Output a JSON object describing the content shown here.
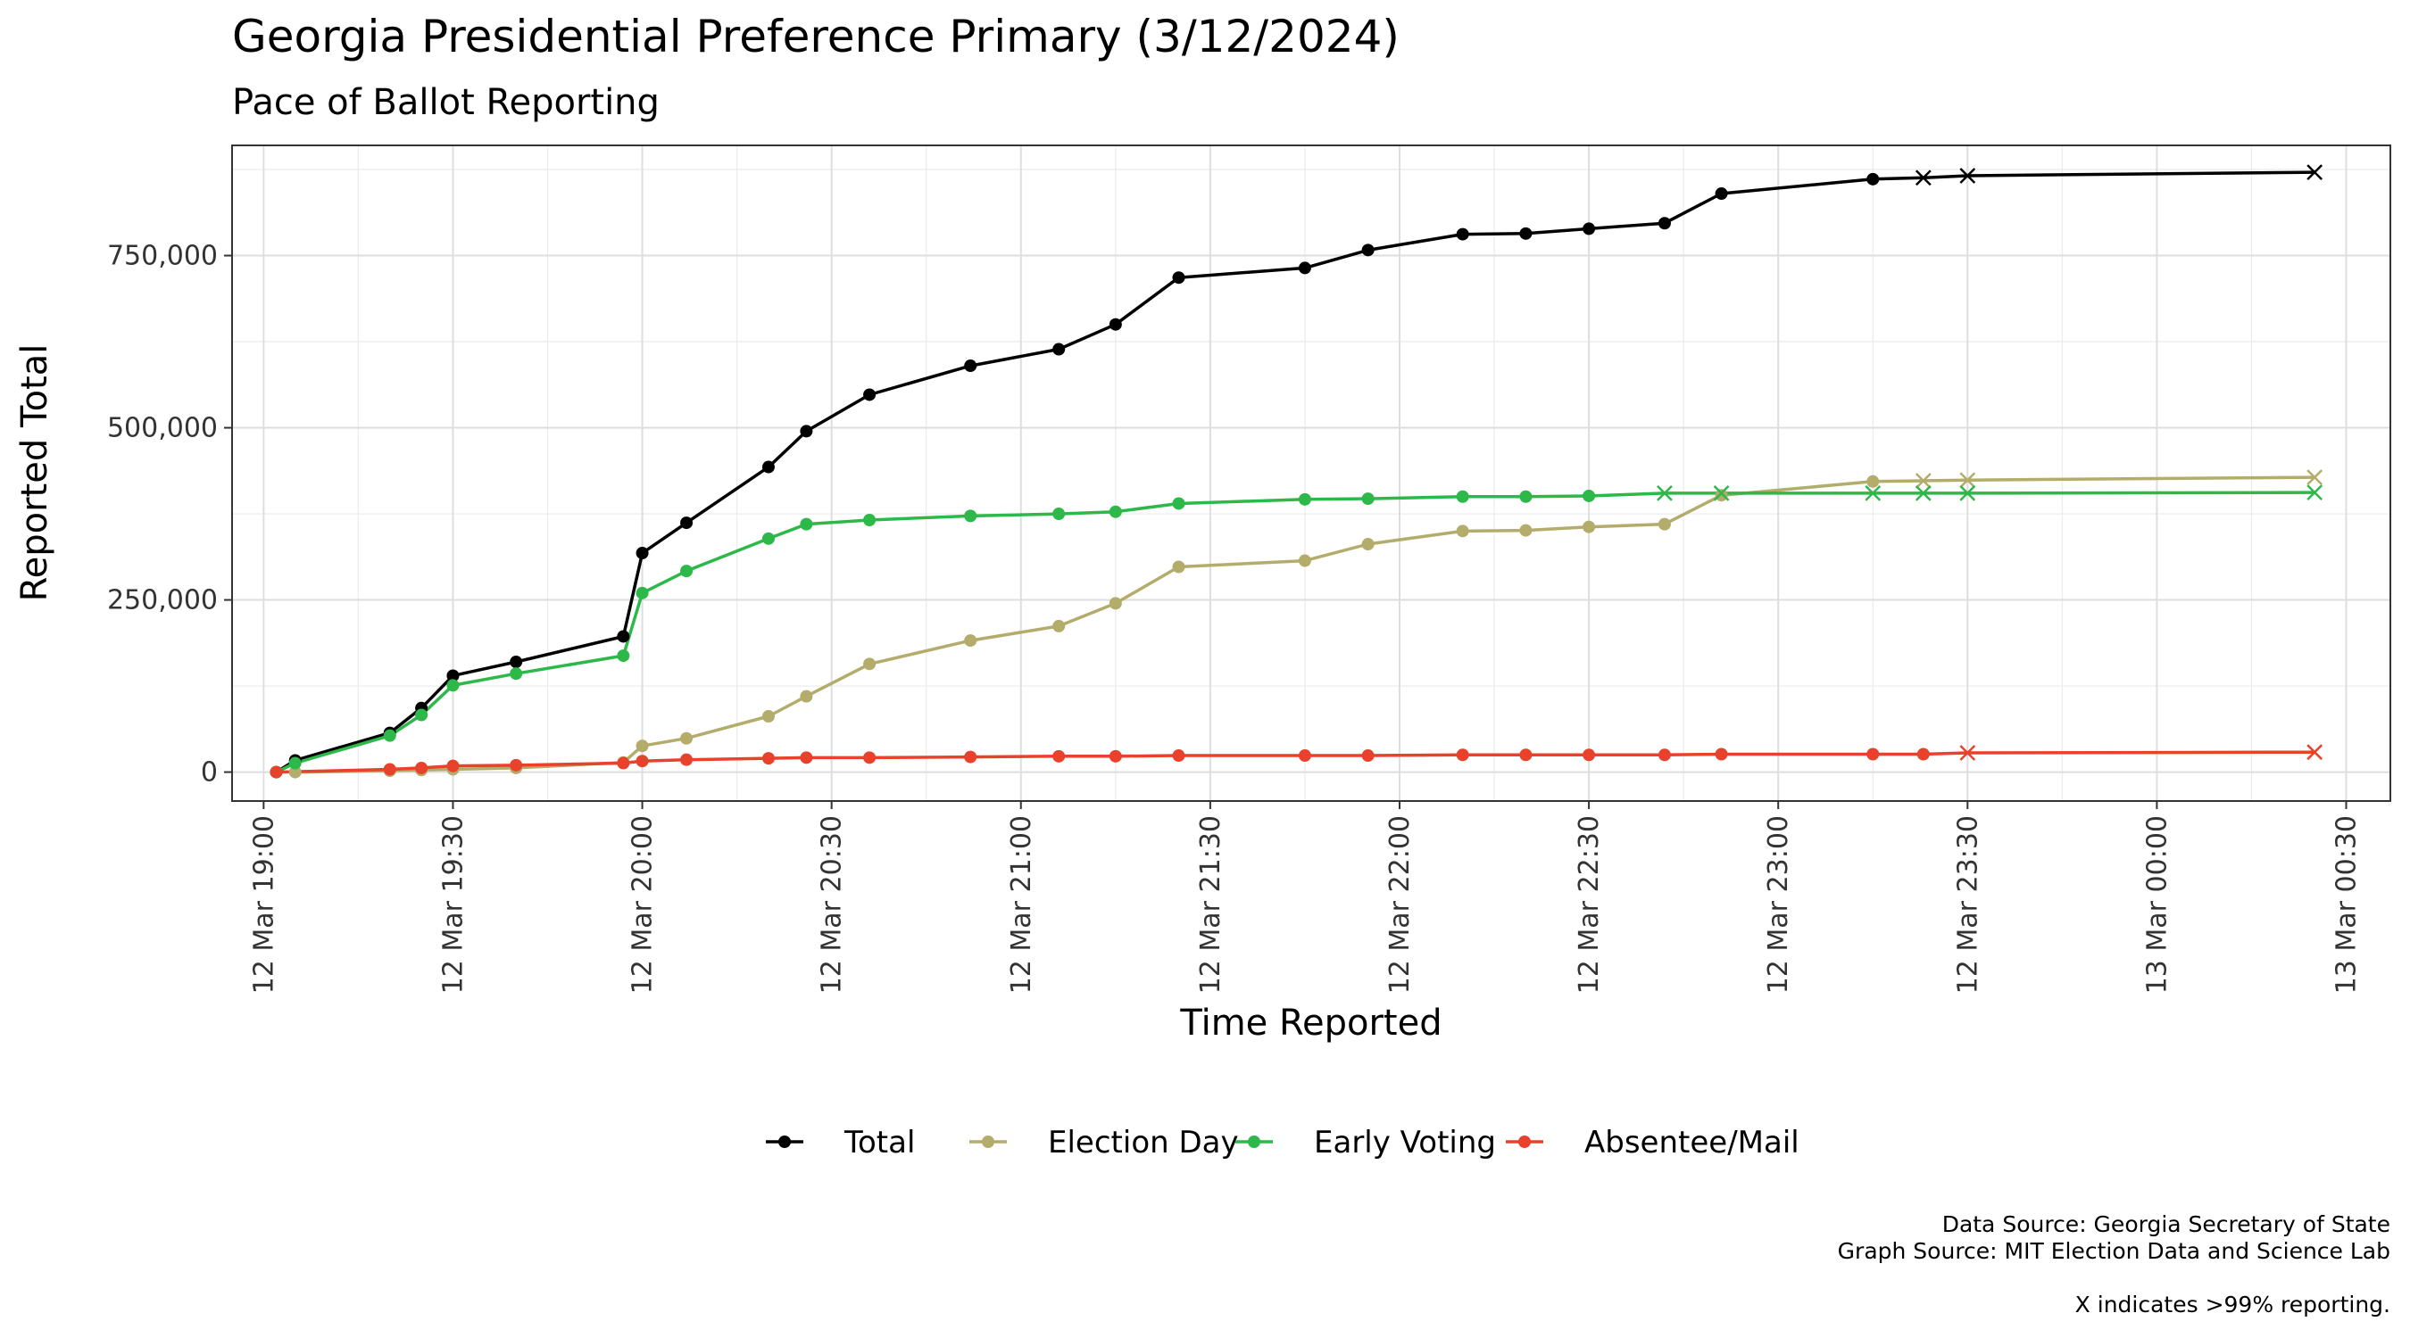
{
  "chart_data": {
    "type": "line",
    "title": "Georgia Presidential Preference Primary (3/12/2024)",
    "subtitle": "Pace of Ballot Reporting",
    "xlabel": "Time Reported",
    "ylabel": "Reported Total",
    "ylim": [
      -42000,
      910000
    ],
    "xlim": [
      "2024-03-12 18:55",
      "2024-03-13 00:37"
    ],
    "y_ticks": [
      0,
      250000,
      500000,
      750000
    ],
    "y_tick_labels": [
      "0",
      "250,000",
      "500,000",
      "750,000"
    ],
    "x_ticks": [
      "2024-03-12 19:00",
      "2024-03-12 19:30",
      "2024-03-12 20:00",
      "2024-03-12 20:30",
      "2024-03-12 21:00",
      "2024-03-12 21:30",
      "2024-03-12 22:00",
      "2024-03-12 22:30",
      "2024-03-12 23:00",
      "2024-03-12 23:30",
      "2024-03-13 00:00",
      "2024-03-13 00:30"
    ],
    "x_tick_labels": [
      "12 Mar 19:00",
      "12 Mar 19:30",
      "12 Mar 20:00",
      "12 Mar 20:30",
      "12 Mar 21:00",
      "12 Mar 21:30",
      "12 Mar 22:00",
      "12 Mar 22:30",
      "12 Mar 23:00",
      "12 Mar 23:30",
      "13 Mar 00:00",
      "13 Mar 00:30"
    ],
    "grid": true,
    "legend_position": "bottom",
    "marker_note": "X indicates >99% reporting.",
    "sources": [
      "Data Source: Georgia Secretary of State",
      "Graph Source: MIT Election Data and Science Lab"
    ],
    "series": [
      {
        "name": "Total",
        "color": "#000000",
        "points": [
          {
            "x": "2024-03-12 19:02",
            "y": 0,
            "m": "o"
          },
          {
            "x": "2024-03-12 19:05",
            "y": 17000,
            "m": "o"
          },
          {
            "x": "2024-03-12 19:20",
            "y": 57000,
            "m": "o"
          },
          {
            "x": "2024-03-12 19:25",
            "y": 93000,
            "m": "o"
          },
          {
            "x": "2024-03-12 19:30",
            "y": 140000,
            "m": "o"
          },
          {
            "x": "2024-03-12 19:40",
            "y": 160000,
            "m": "o"
          },
          {
            "x": "2024-03-12 19:57",
            "y": 197000,
            "m": "o"
          },
          {
            "x": "2024-03-12 20:00",
            "y": 318000,
            "m": "o"
          },
          {
            "x": "2024-03-12 20:07",
            "y": 362000,
            "m": "o"
          },
          {
            "x": "2024-03-12 20:20",
            "y": 443000,
            "m": "o"
          },
          {
            "x": "2024-03-12 20:26",
            "y": 495000,
            "m": "o"
          },
          {
            "x": "2024-03-12 20:36",
            "y": 548000,
            "m": "o"
          },
          {
            "x": "2024-03-12 20:52",
            "y": 590000,
            "m": "o"
          },
          {
            "x": "2024-03-12 21:06",
            "y": 614000,
            "m": "o"
          },
          {
            "x": "2024-03-12 21:15",
            "y": 650000,
            "m": "o"
          },
          {
            "x": "2024-03-12 21:25",
            "y": 718000,
            "m": "o"
          },
          {
            "x": "2024-03-12 21:45",
            "y": 732000,
            "m": "o"
          },
          {
            "x": "2024-03-12 21:55",
            "y": 758000,
            "m": "o"
          },
          {
            "x": "2024-03-12 22:10",
            "y": 781000,
            "m": "o"
          },
          {
            "x": "2024-03-12 22:20",
            "y": 782000,
            "m": "o"
          },
          {
            "x": "2024-03-12 22:30",
            "y": 789000,
            "m": "o"
          },
          {
            "x": "2024-03-12 22:42",
            "y": 797000,
            "m": "o"
          },
          {
            "x": "2024-03-12 22:51",
            "y": 840000,
            "m": "o"
          },
          {
            "x": "2024-03-12 23:15",
            "y": 861000,
            "m": "o"
          },
          {
            "x": "2024-03-12 23:23",
            "y": 863000,
            "m": "x"
          },
          {
            "x": "2024-03-12 23:30",
            "y": 866000,
            "m": "x"
          },
          {
            "x": "2024-03-13 00:25",
            "y": 871000,
            "m": "x"
          }
        ]
      },
      {
        "name": "Election Day",
        "color": "#b3ac6b",
        "points": [
          {
            "x": "2024-03-12 19:05",
            "y": 0,
            "m": "o"
          },
          {
            "x": "2024-03-12 19:20",
            "y": 2000,
            "m": "o"
          },
          {
            "x": "2024-03-12 19:25",
            "y": 3000,
            "m": "o"
          },
          {
            "x": "2024-03-12 19:30",
            "y": 4000,
            "m": "o"
          },
          {
            "x": "2024-03-12 19:40",
            "y": 6000,
            "m": "o"
          },
          {
            "x": "2024-03-12 19:57",
            "y": 14000,
            "m": "o"
          },
          {
            "x": "2024-03-12 20:00",
            "y": 38000,
            "m": "o"
          },
          {
            "x": "2024-03-12 20:07",
            "y": 49000,
            "m": "o"
          },
          {
            "x": "2024-03-12 20:20",
            "y": 81000,
            "m": "o"
          },
          {
            "x": "2024-03-12 20:26",
            "y": 110000,
            "m": "o"
          },
          {
            "x": "2024-03-12 20:36",
            "y": 157000,
            "m": "o"
          },
          {
            "x": "2024-03-12 20:52",
            "y": 191000,
            "m": "o"
          },
          {
            "x": "2024-03-12 21:06",
            "y": 212000,
            "m": "o"
          },
          {
            "x": "2024-03-12 21:15",
            "y": 245000,
            "m": "o"
          },
          {
            "x": "2024-03-12 21:25",
            "y": 298000,
            "m": "o"
          },
          {
            "x": "2024-03-12 21:45",
            "y": 307000,
            "m": "o"
          },
          {
            "x": "2024-03-12 21:55",
            "y": 331000,
            "m": "o"
          },
          {
            "x": "2024-03-12 22:10",
            "y": 350000,
            "m": "o"
          },
          {
            "x": "2024-03-12 22:20",
            "y": 351000,
            "m": "o"
          },
          {
            "x": "2024-03-12 22:30",
            "y": 356000,
            "m": "o"
          },
          {
            "x": "2024-03-12 22:42",
            "y": 360000,
            "m": "o"
          },
          {
            "x": "2024-03-12 22:51",
            "y": 402000,
            "m": "o"
          },
          {
            "x": "2024-03-12 23:15",
            "y": 422000,
            "m": "o"
          },
          {
            "x": "2024-03-12 23:23",
            "y": 423000,
            "m": "x"
          },
          {
            "x": "2024-03-12 23:30",
            "y": 424000,
            "m": "x"
          },
          {
            "x": "2024-03-13 00:25",
            "y": 428000,
            "m": "x"
          }
        ]
      },
      {
        "name": "Early Voting",
        "color": "#2db84a",
        "points": [
          {
            "x": "2024-03-12 19:02",
            "y": 0,
            "m": "o"
          },
          {
            "x": "2024-03-12 19:05",
            "y": 13000,
            "m": "o"
          },
          {
            "x": "2024-03-12 19:20",
            "y": 53000,
            "m": "o"
          },
          {
            "x": "2024-03-12 19:25",
            "y": 83000,
            "m": "o"
          },
          {
            "x": "2024-03-12 19:30",
            "y": 126000,
            "m": "o"
          },
          {
            "x": "2024-03-12 19:40",
            "y": 143000,
            "m": "o"
          },
          {
            "x": "2024-03-12 19:57",
            "y": 169000,
            "m": "o"
          },
          {
            "x": "2024-03-12 20:00",
            "y": 260000,
            "m": "o"
          },
          {
            "x": "2024-03-12 20:07",
            "y": 292000,
            "m": "o"
          },
          {
            "x": "2024-03-12 20:20",
            "y": 339000,
            "m": "o"
          },
          {
            "x": "2024-03-12 20:26",
            "y": 360000,
            "m": "o"
          },
          {
            "x": "2024-03-12 20:36",
            "y": 366000,
            "m": "o"
          },
          {
            "x": "2024-03-12 20:52",
            "y": 372000,
            "m": "o"
          },
          {
            "x": "2024-03-12 21:06",
            "y": 375000,
            "m": "o"
          },
          {
            "x": "2024-03-12 21:15",
            "y": 378000,
            "m": "o"
          },
          {
            "x": "2024-03-12 21:25",
            "y": 390000,
            "m": "o"
          },
          {
            "x": "2024-03-12 21:45",
            "y": 396000,
            "m": "o"
          },
          {
            "x": "2024-03-12 21:55",
            "y": 397000,
            "m": "o"
          },
          {
            "x": "2024-03-12 22:10",
            "y": 400000,
            "m": "o"
          },
          {
            "x": "2024-03-12 22:20",
            "y": 400000,
            "m": "o"
          },
          {
            "x": "2024-03-12 22:30",
            "y": 401000,
            "m": "o"
          },
          {
            "x": "2024-03-12 22:42",
            "y": 405000,
            "m": "x"
          },
          {
            "x": "2024-03-12 22:51",
            "y": 405000,
            "m": "x"
          },
          {
            "x": "2024-03-12 23:15",
            "y": 405000,
            "m": "x"
          },
          {
            "x": "2024-03-12 23:23",
            "y": 405000,
            "m": "x"
          },
          {
            "x": "2024-03-12 23:30",
            "y": 405000,
            "m": "x"
          },
          {
            "x": "2024-03-13 00:25",
            "y": 406000,
            "m": "x"
          }
        ]
      },
      {
        "name": "Absentee/Mail",
        "color": "#e8412c",
        "points": [
          {
            "x": "2024-03-12 19:02",
            "y": 0,
            "m": "o"
          },
          {
            "x": "2024-03-12 19:20",
            "y": 4000,
            "m": "o"
          },
          {
            "x": "2024-03-12 19:25",
            "y": 6000,
            "m": "o"
          },
          {
            "x": "2024-03-12 19:30",
            "y": 9000,
            "m": "o"
          },
          {
            "x": "2024-03-12 19:40",
            "y": 10000,
            "m": "o"
          },
          {
            "x": "2024-03-12 19:57",
            "y": 13000,
            "m": "o"
          },
          {
            "x": "2024-03-12 20:00",
            "y": 16000,
            "m": "o"
          },
          {
            "x": "2024-03-12 20:07",
            "y": 18000,
            "m": "o"
          },
          {
            "x": "2024-03-12 20:20",
            "y": 20000,
            "m": "o"
          },
          {
            "x": "2024-03-12 20:26",
            "y": 21000,
            "m": "o"
          },
          {
            "x": "2024-03-12 20:36",
            "y": 21000,
            "m": "o"
          },
          {
            "x": "2024-03-12 20:52",
            "y": 22000,
            "m": "o"
          },
          {
            "x": "2024-03-12 21:06",
            "y": 23000,
            "m": "o"
          },
          {
            "x": "2024-03-12 21:15",
            "y": 23000,
            "m": "o"
          },
          {
            "x": "2024-03-12 21:25",
            "y": 24000,
            "m": "o"
          },
          {
            "x": "2024-03-12 21:45",
            "y": 24000,
            "m": "o"
          },
          {
            "x": "2024-03-12 21:55",
            "y": 24000,
            "m": "o"
          },
          {
            "x": "2024-03-12 22:10",
            "y": 25000,
            "m": "o"
          },
          {
            "x": "2024-03-12 22:20",
            "y": 25000,
            "m": "o"
          },
          {
            "x": "2024-03-12 22:30",
            "y": 25000,
            "m": "o"
          },
          {
            "x": "2024-03-12 22:42",
            "y": 25000,
            "m": "o"
          },
          {
            "x": "2024-03-12 22:51",
            "y": 26000,
            "m": "o"
          },
          {
            "x": "2024-03-12 23:15",
            "y": 26000,
            "m": "o"
          },
          {
            "x": "2024-03-12 23:23",
            "y": 26000,
            "m": "o"
          },
          {
            "x": "2024-03-12 23:30",
            "y": 28000,
            "m": "x"
          },
          {
            "x": "2024-03-13 00:25",
            "y": 29000,
            "m": "x"
          }
        ]
      }
    ]
  }
}
